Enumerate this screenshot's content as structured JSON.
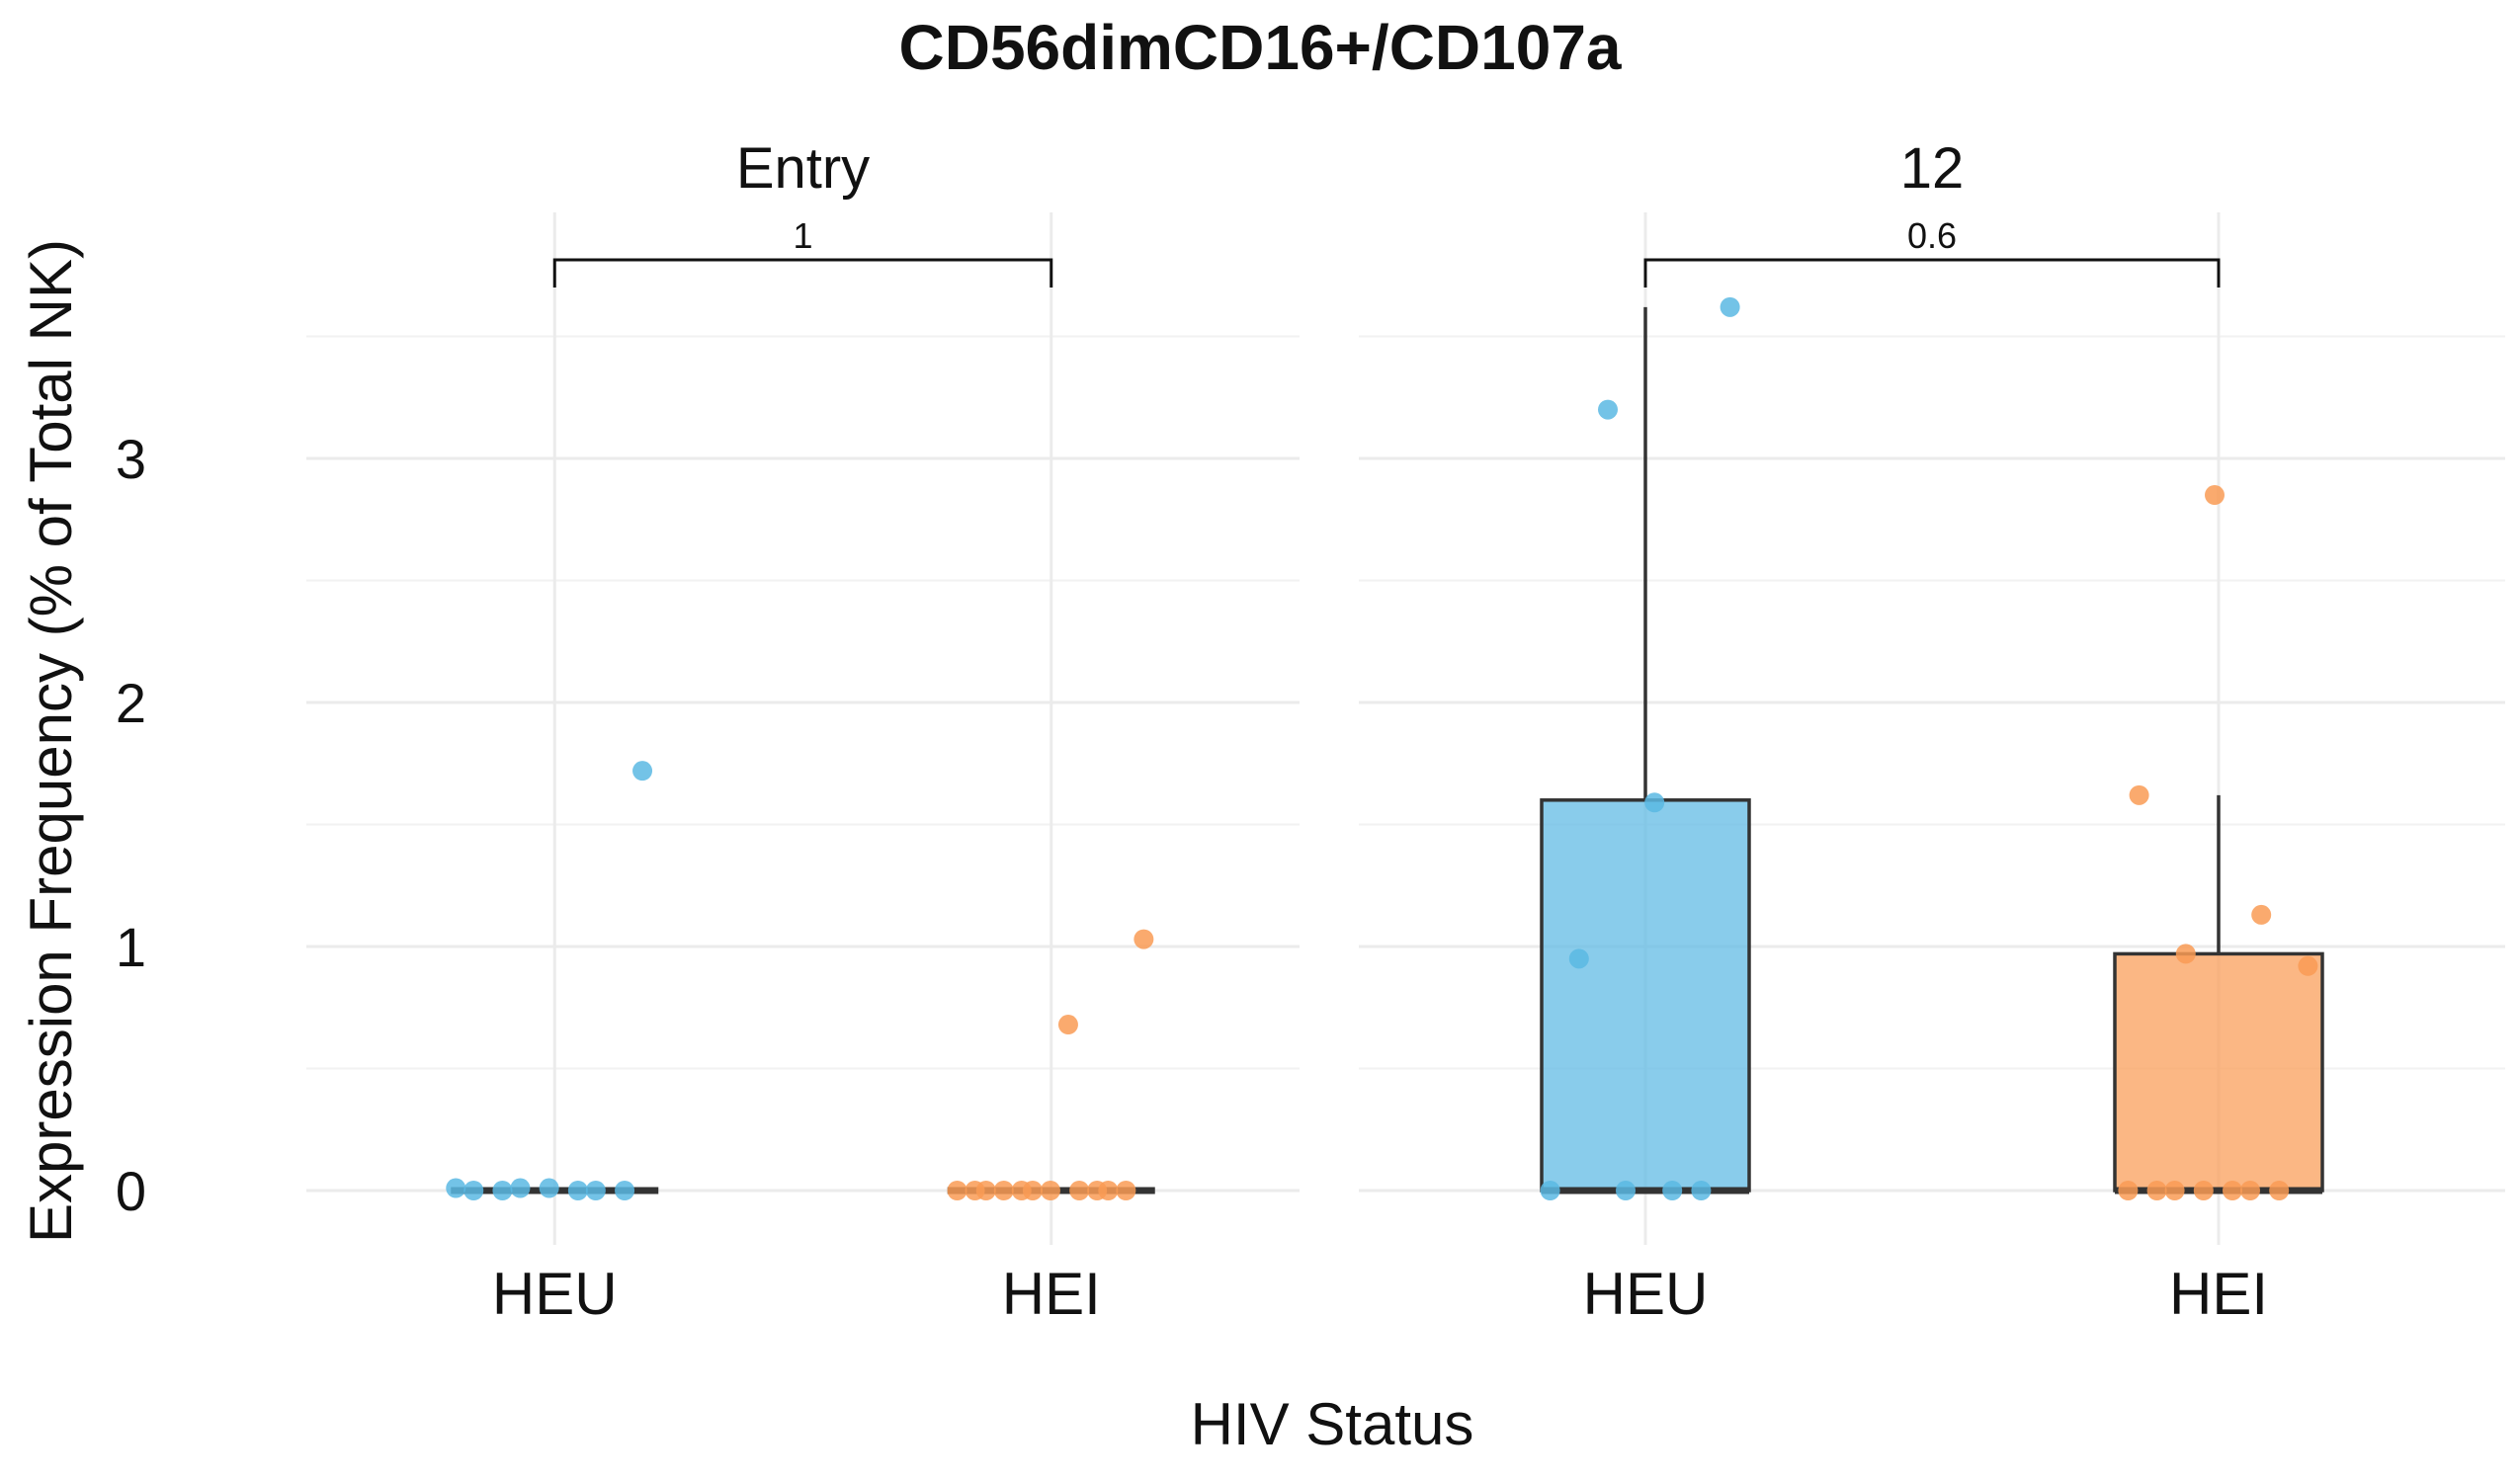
{
  "chart_data": {
    "type": "box",
    "title": "CD56dimCD16+/CD107a",
    "xlabel": "HIV Status",
    "ylabel": "Expression Frequency (% of Total NK)",
    "ylim": [
      0,
      3.6
    ],
    "yticks": [
      0,
      1,
      2,
      3
    ],
    "grid": true,
    "legend": "none",
    "colors": {
      "HEU": "#5bb8e3",
      "HEI": "#f99b55",
      "box_stroke": "#333333",
      "text": "#111111"
    },
    "panels": [
      {
        "facet": "Entry",
        "comparison": {
          "label": "1"
        },
        "groups": [
          {
            "category": "HEU",
            "box": {
              "q1": 0,
              "median": 0,
              "q3": 0,
              "whisker_low": 0,
              "whisker_high": 0
            },
            "points": [
              0.01,
              0.0,
              0.0,
              0.0,
              0.01,
              0.0,
              0.0,
              0.01,
              1.72
            ]
          },
          {
            "category": "HEI",
            "box": {
              "q1": 0,
              "median": 0,
              "q3": 0,
              "whisker_low": 0,
              "whisker_high": 0
            },
            "points": [
              0.0,
              0.0,
              0.0,
              0.0,
              0.0,
              0.0,
              0.0,
              0.0,
              0.0,
              0.0,
              0.0,
              1.03,
              0.68
            ]
          }
        ]
      },
      {
        "facet": "12",
        "comparison": {
          "label": "0.6"
        },
        "groups": [
          {
            "category": "HEU",
            "box": {
              "q1": 0,
              "median": 0,
              "q3": 1.6,
              "whisker_low": 0,
              "whisker_high": 3.62
            },
            "points": [
              3.2,
              3.62,
              1.59,
              0.95,
              0.0,
              0.0,
              0.0,
              0.0
            ]
          },
          {
            "category": "HEI",
            "box": {
              "q1": 0,
              "median": 0,
              "q3": 0.97,
              "whisker_low": 0,
              "whisker_high": 1.62
            },
            "points": [
              2.85,
              1.62,
              1.13,
              0.97,
              0.92,
              0.0,
              0.0,
              0.0,
              0.0,
              0.0,
              0.0,
              0.0
            ]
          }
        ]
      }
    ]
  }
}
